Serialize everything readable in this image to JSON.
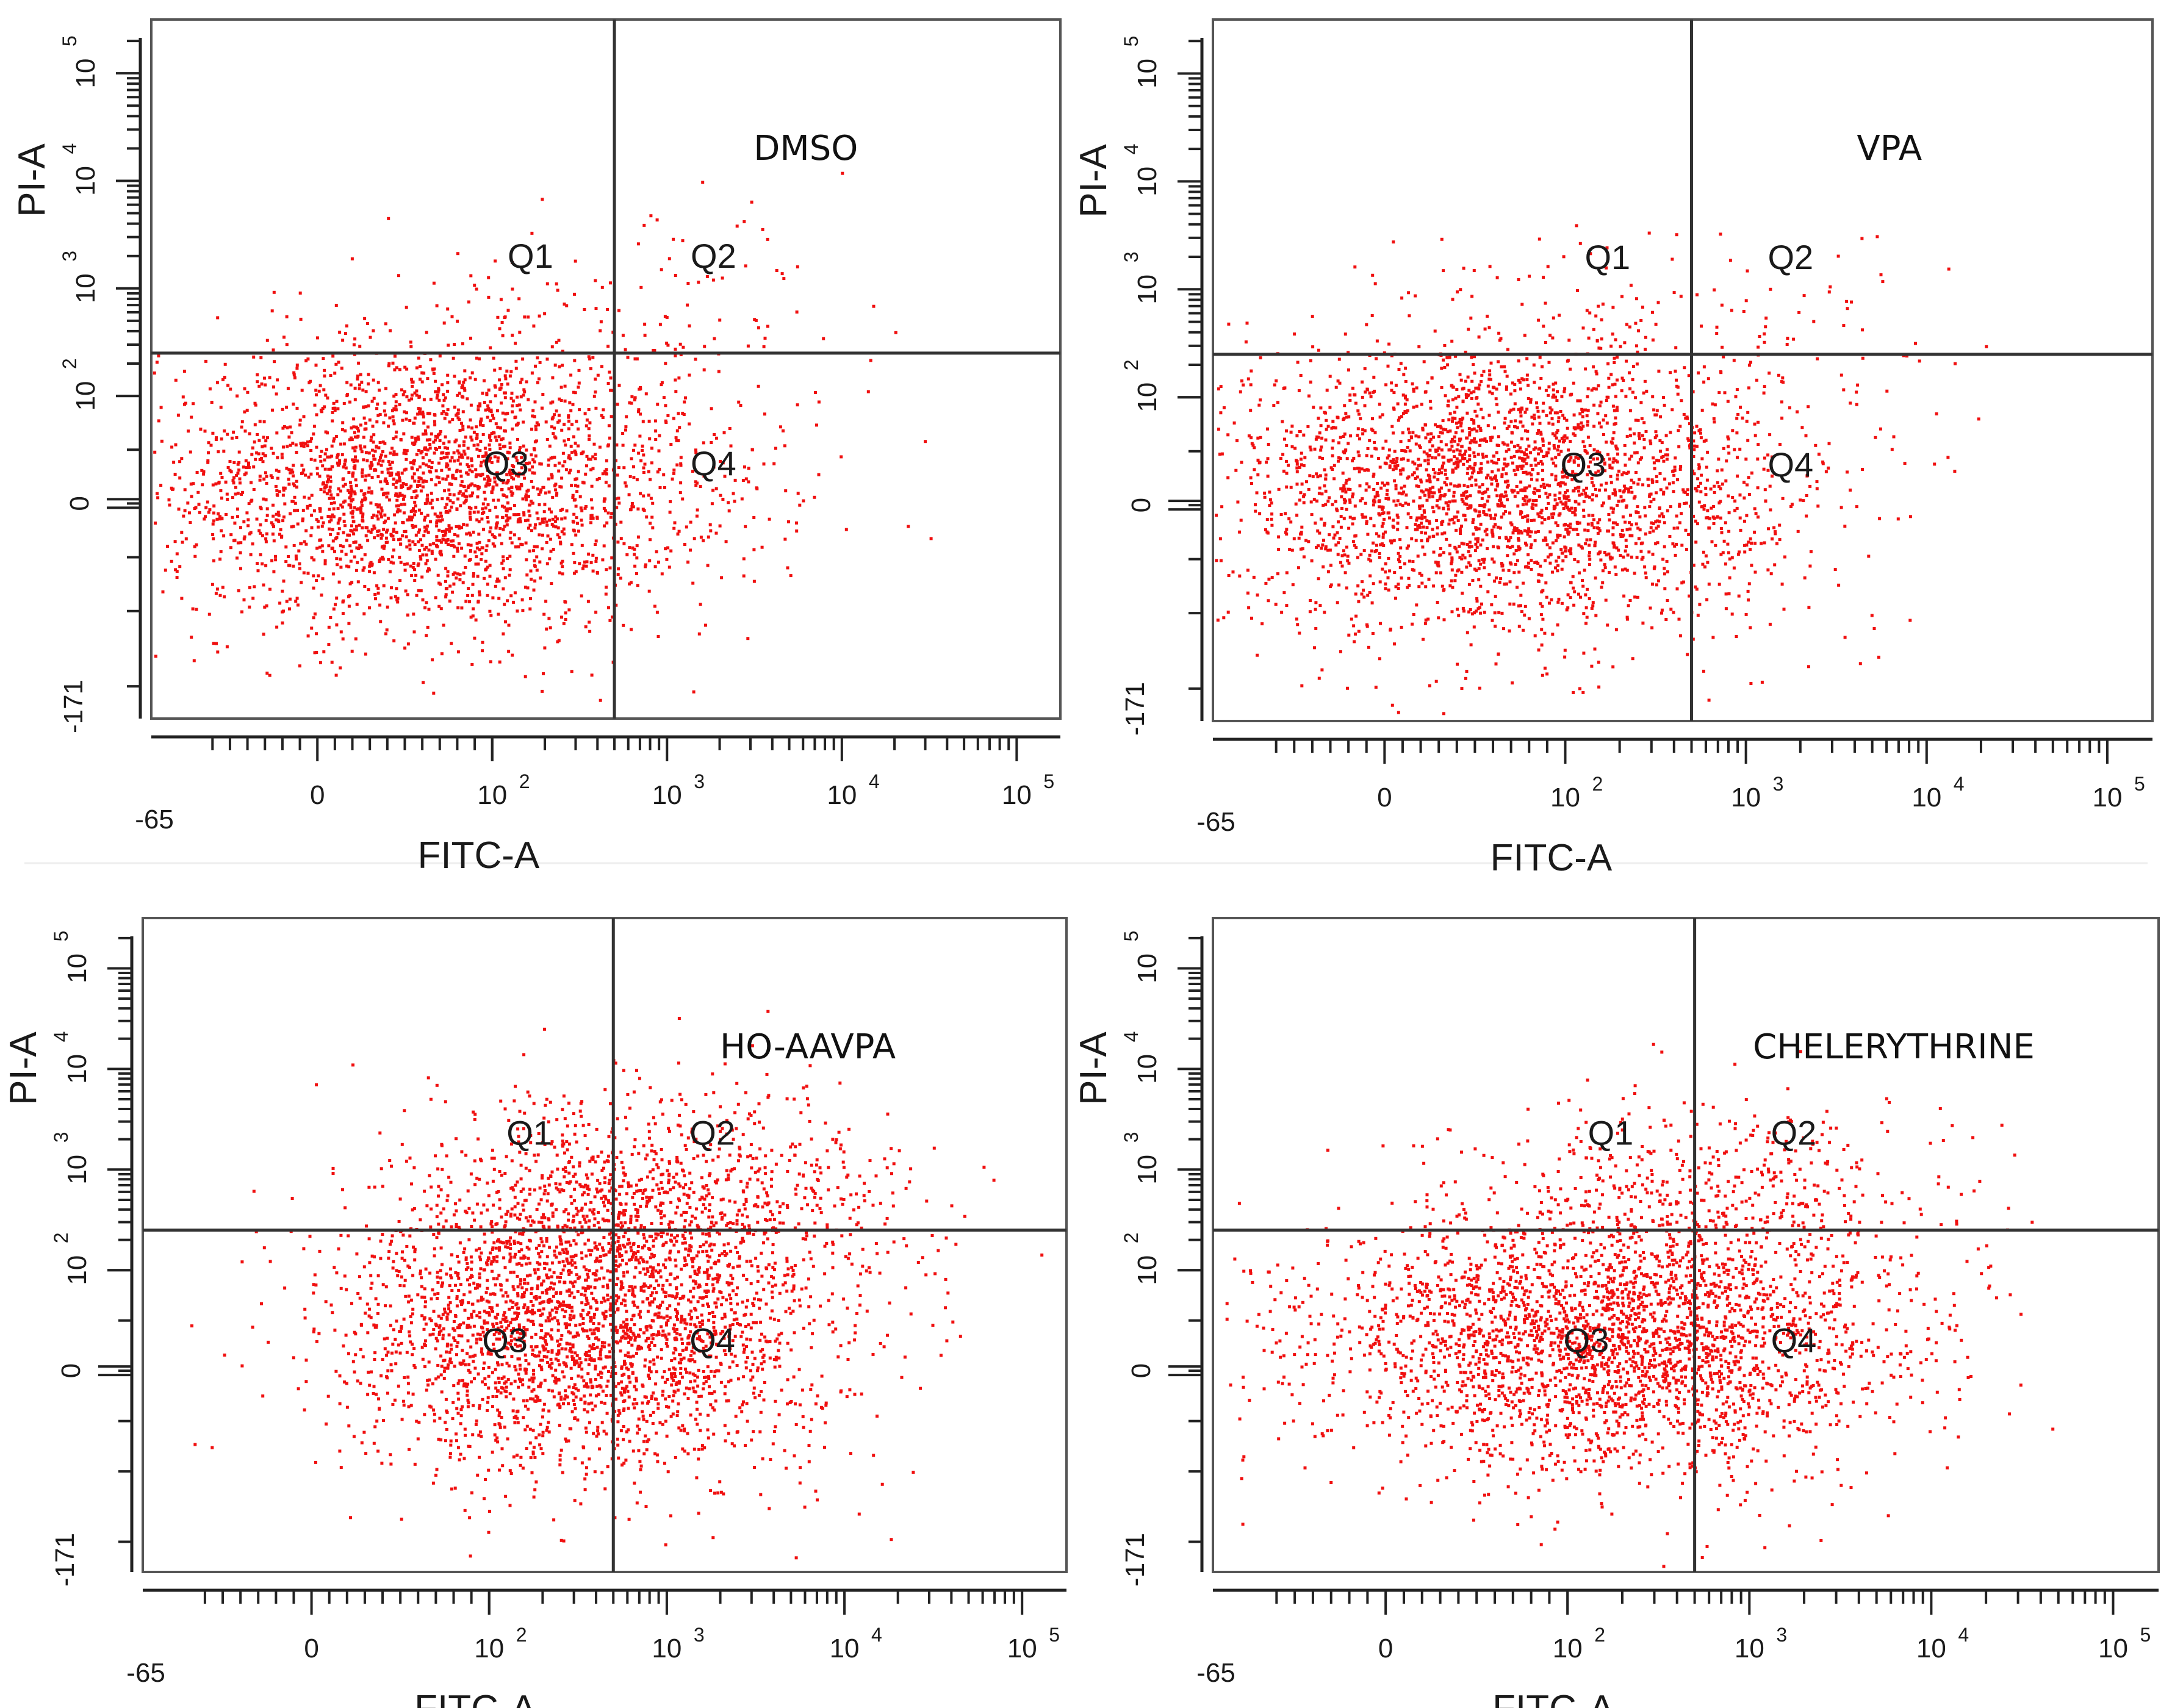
{
  "chart_data": [
    {
      "type": "scatter",
      "title": "DMSO",
      "xlabel": "FITC-A",
      "ylabel": "PI-A",
      "x_scale": "biexponential",
      "y_scale": "biexponential",
      "xlim": [
        -65,
        200000
      ],
      "ylim": [
        -171,
        200000
      ],
      "x_ticks": [
        {
          "base": "-65",
          "exp": ""
        },
        {
          "base": "0",
          "exp": ""
        },
        {
          "base": "10",
          "exp": "2"
        },
        {
          "base": "10",
          "exp": "3"
        },
        {
          "base": "10",
          "exp": "4"
        },
        {
          "base": "10",
          "exp": "5"
        }
      ],
      "y_ticks": [
        {
          "base": "-171",
          "exp": ""
        },
        {
          "base": "0",
          "exp": ""
        },
        {
          "base": "10",
          "exp": "2"
        },
        {
          "base": "10",
          "exp": "3"
        },
        {
          "base": "10",
          "exp": "4"
        },
        {
          "base": "10",
          "exp": "5"
        }
      ],
      "gate": {
        "x": 500,
        "y": 250
      },
      "quadrants": [
        "Q1",
        "Q2",
        "Q3",
        "Q4"
      ],
      "point_color": "#f01010",
      "clusters": [
        {
          "cx": 60,
          "cy": 15,
          "sx": 0.34,
          "sy": 0.3,
          "n": 2600,
          "quadrant": "Q3"
        },
        {
          "cx": 1000,
          "cy": 20,
          "sx": 0.28,
          "sy": 0.33,
          "n": 150,
          "quadrant": "Q4"
        },
        {
          "cx": 150,
          "cy": 500,
          "sx": 0.3,
          "sy": 0.2,
          "n": 60,
          "quadrant": "Q1"
        },
        {
          "cx": 1000,
          "cy": 500,
          "sx": 0.25,
          "sy": 0.22,
          "n": 60,
          "quadrant": "Q2"
        }
      ]
    },
    {
      "type": "scatter",
      "title": "VPA",
      "xlabel": "FITC-A",
      "ylabel": "PI-A",
      "x_scale": "biexponential",
      "y_scale": "biexponential",
      "xlim": [
        -65,
        200000
      ],
      "ylim": [
        -171,
        200000
      ],
      "x_ticks": [
        {
          "base": "-65",
          "exp": ""
        },
        {
          "base": "0",
          "exp": ""
        },
        {
          "base": "10",
          "exp": "2"
        },
        {
          "base": "10",
          "exp": "3"
        },
        {
          "base": "10",
          "exp": "4"
        },
        {
          "base": "10",
          "exp": "5"
        }
      ],
      "y_ticks": [
        {
          "base": "-171",
          "exp": ""
        },
        {
          "base": "0",
          "exp": ""
        },
        {
          "base": "10",
          "exp": "2"
        },
        {
          "base": "10",
          "exp": "3"
        },
        {
          "base": "10",
          "exp": "4"
        },
        {
          "base": "10",
          "exp": "5"
        }
      ],
      "gate": {
        "x": 500,
        "y": 250
      },
      "quadrants": [
        "Q1",
        "Q2",
        "Q3",
        "Q4"
      ],
      "point_color": "#f01010",
      "clusters": [
        {
          "cx": 60,
          "cy": 15,
          "sx": 0.34,
          "sy": 0.3,
          "n": 2700,
          "quadrant": "Q3"
        },
        {
          "cx": 1000,
          "cy": 20,
          "sx": 0.28,
          "sy": 0.33,
          "n": 140,
          "quadrant": "Q4"
        },
        {
          "cx": 150,
          "cy": 500,
          "sx": 0.3,
          "sy": 0.2,
          "n": 70,
          "quadrant": "Q1"
        },
        {
          "cx": 1000,
          "cy": 500,
          "sx": 0.25,
          "sy": 0.2,
          "n": 40,
          "quadrant": "Q2"
        }
      ]
    },
    {
      "type": "scatter",
      "title": "HO-AAVPA",
      "xlabel": "FITC-A",
      "ylabel": "PI-A",
      "x_scale": "biexponential",
      "y_scale": "biexponential",
      "xlim": [
        -65,
        200000
      ],
      "ylim": [
        -171,
        200000
      ],
      "x_ticks": [
        {
          "base": "-65",
          "exp": ""
        },
        {
          "base": "0",
          "exp": ""
        },
        {
          "base": "10",
          "exp": "2"
        },
        {
          "base": "10",
          "exp": "3"
        },
        {
          "base": "10",
          "exp": "4"
        },
        {
          "base": "10",
          "exp": "5"
        }
      ],
      "y_ticks": [
        {
          "base": "-171",
          "exp": ""
        },
        {
          "base": "0",
          "exp": ""
        },
        {
          "base": "10",
          "exp": "2"
        },
        {
          "base": "10",
          "exp": "3"
        },
        {
          "base": "10",
          "exp": "4"
        },
        {
          "base": "10",
          "exp": "5"
        }
      ],
      "gate": {
        "x": 500,
        "y": 250
      },
      "quadrants": [
        "Q1",
        "Q2",
        "Q3",
        "Q4"
      ],
      "point_color": "#f01010",
      "clusters": [
        {
          "cx": 300,
          "cy": 40,
          "sx": 0.3,
          "sy": 0.33,
          "n": 2300,
          "quadrant": "Q3"
        },
        {
          "cx": 1200,
          "cy": 60,
          "sx": 0.3,
          "sy": 0.33,
          "n": 500,
          "quadrant": "Q4"
        },
        {
          "cx": 1200,
          "cy": 600,
          "sx": 0.28,
          "sy": 0.25,
          "n": 650,
          "quadrant": "Q2"
        },
        {
          "cx": 250,
          "cy": 550,
          "sx": 0.22,
          "sy": 0.25,
          "n": 160,
          "quadrant": "Q1"
        }
      ]
    },
    {
      "type": "scatter",
      "title": "CHELERYTHRINE",
      "xlabel": "FITC-A",
      "ylabel": "PI-A",
      "x_scale": "biexponential",
      "y_scale": "biexponential",
      "xlim": [
        -65,
        200000
      ],
      "ylim": [
        -171,
        200000
      ],
      "x_ticks": [
        {
          "base": "-65",
          "exp": ""
        },
        {
          "base": "0",
          "exp": ""
        },
        {
          "base": "10",
          "exp": "2"
        },
        {
          "base": "10",
          "exp": "3"
        },
        {
          "base": "10",
          "exp": "4"
        },
        {
          "base": "10",
          "exp": "5"
        }
      ],
      "y_ticks": [
        {
          "base": "-171",
          "exp": ""
        },
        {
          "base": "0",
          "exp": ""
        },
        {
          "base": "10",
          "exp": "2"
        },
        {
          "base": "10",
          "exp": "3"
        },
        {
          "base": "10",
          "exp": "4"
        },
        {
          "base": "10",
          "exp": "5"
        }
      ],
      "gate": {
        "x": 500,
        "y": 250
      },
      "quadrants": [
        "Q1",
        "Q2",
        "Q3",
        "Q4"
      ],
      "point_color": "#f01010",
      "clusters": [
        {
          "cx": 150,
          "cy": 30,
          "sx": 0.35,
          "sy": 0.3,
          "n": 2700,
          "quadrant": "Q3"
        },
        {
          "cx": 900,
          "cy": 40,
          "sx": 0.25,
          "sy": 0.3,
          "n": 300,
          "quadrant": "Q4"
        },
        {
          "cx": 900,
          "cy": 600,
          "sx": 0.3,
          "sy": 0.23,
          "n": 300,
          "quadrant": "Q2"
        },
        {
          "cx": 250,
          "cy": 550,
          "sx": 0.25,
          "sy": 0.22,
          "n": 100,
          "quadrant": "Q1"
        }
      ]
    }
  ]
}
